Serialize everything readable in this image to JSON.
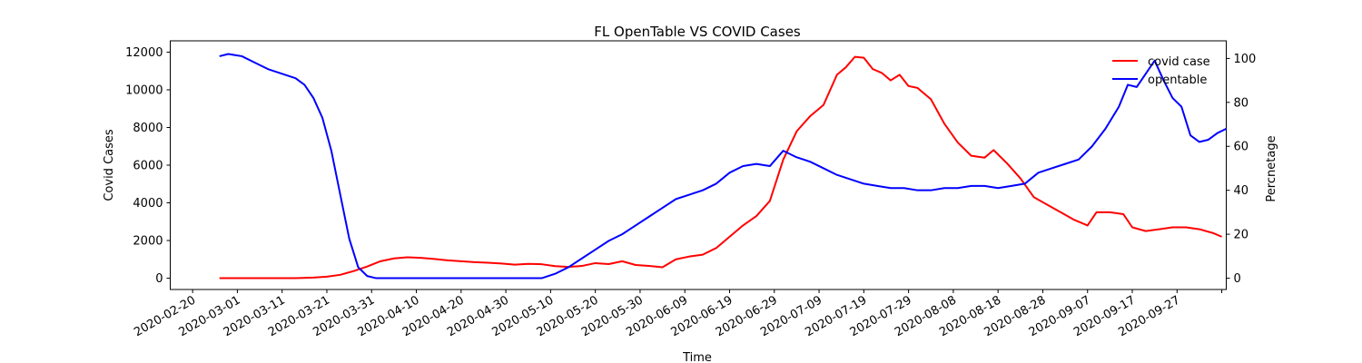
{
  "chart_data": {
    "type": "line",
    "title": "FL OpenTable VS COVID Cases",
    "xlabel": "Time",
    "ylabel_left": "Covid Cases",
    "ylabel_right": "Percnetage",
    "x_range": [
      "2020-02-15",
      "2020-10-08"
    ],
    "ylim_left": [
      -600,
      12600
    ],
    "ylim_right": [
      -5.14,
      108
    ],
    "x_ticks": [
      "2020-02-20",
      "2020-03-01",
      "2020-03-11",
      "2020-03-21",
      "2020-03-31",
      "2020-04-10",
      "2020-04-20",
      "2020-04-30",
      "2020-05-10",
      "2020-05-20",
      "2020-05-30",
      "2020-06-09",
      "2020-06-19",
      "2020-06-29",
      "2020-07-09",
      "2020-07-19",
      "2020-07-29",
      "2020-08-08",
      "2020-08-18",
      "2020-08-28",
      "2020-09-07",
      "2020-09-17",
      "2020-09-27",
      "2020-10-07"
    ],
    "x_tick_labels": [
      "2020-02-20",
      "2020-03-01",
      "2020-03-11",
      "2020-03-21",
      "2020-03-31",
      "2020-04-10",
      "2020-04-20",
      "2020-04-30",
      "2020-05-10",
      "2020-05-20",
      "2020-05-30",
      "2020-06-09",
      "2020-06-19",
      "2020-06-29",
      "2020-07-09",
      "2020-07-19",
      "2020-07-29",
      "2020-08-08",
      "2020-08-18",
      "2020-08-28",
      "2020-09-07",
      "2020-09-17",
      "2020-09-27",
      ""
    ],
    "y_ticks_left": [
      0,
      2000,
      4000,
      6000,
      8000,
      10000,
      12000
    ],
    "y_ticks_right": [
      0,
      20,
      40,
      60,
      80,
      100
    ],
    "legend_position": "top-right",
    "grid": false,
    "series": [
      {
        "name": "covid case",
        "color": "#ff0000",
        "axis": "left",
        "points": [
          [
            "2020-02-26",
            0
          ],
          [
            "2020-03-01",
            0
          ],
          [
            "2020-03-05",
            0
          ],
          [
            "2020-03-10",
            0
          ],
          [
            "2020-03-14",
            0
          ],
          [
            "2020-03-18",
            30
          ],
          [
            "2020-03-21",
            80
          ],
          [
            "2020-03-24",
            180
          ],
          [
            "2020-03-27",
            380
          ],
          [
            "2020-03-30",
            620
          ],
          [
            "2020-04-02",
            900
          ],
          [
            "2020-04-05",
            1050
          ],
          [
            "2020-04-08",
            1110
          ],
          [
            "2020-04-11",
            1080
          ],
          [
            "2020-04-14",
            1020
          ],
          [
            "2020-04-17",
            950
          ],
          [
            "2020-04-20",
            900
          ],
          [
            "2020-04-23",
            850
          ],
          [
            "2020-04-26",
            820
          ],
          [
            "2020-04-29",
            780
          ],
          [
            "2020-05-02",
            720
          ],
          [
            "2020-05-05",
            760
          ],
          [
            "2020-05-08",
            740
          ],
          [
            "2020-05-11",
            640
          ],
          [
            "2020-05-14",
            600
          ],
          [
            "2020-05-17",
            650
          ],
          [
            "2020-05-20",
            800
          ],
          [
            "2020-05-23",
            750
          ],
          [
            "2020-05-26",
            900
          ],
          [
            "2020-05-29",
            700
          ],
          [
            "2020-06-01",
            650
          ],
          [
            "2020-06-04",
            580
          ],
          [
            "2020-06-07",
            1000
          ],
          [
            "2020-06-10",
            1150
          ],
          [
            "2020-06-13",
            1250
          ],
          [
            "2020-06-16",
            1600
          ],
          [
            "2020-06-19",
            2200
          ],
          [
            "2020-06-22",
            2800
          ],
          [
            "2020-06-25",
            3300
          ],
          [
            "2020-06-28",
            4100
          ],
          [
            "2020-07-01",
            6300
          ],
          [
            "2020-07-04",
            7800
          ],
          [
            "2020-07-07",
            8600
          ],
          [
            "2020-07-10",
            9200
          ],
          [
            "2020-07-13",
            10800
          ],
          [
            "2020-07-15",
            11200
          ],
          [
            "2020-07-17",
            11750
          ],
          [
            "2020-07-19",
            11700
          ],
          [
            "2020-07-21",
            11100
          ],
          [
            "2020-07-23",
            10900
          ],
          [
            "2020-07-25",
            10500
          ],
          [
            "2020-07-27",
            10800
          ],
          [
            "2020-07-29",
            10200
          ],
          [
            "2020-07-31",
            10100
          ],
          [
            "2020-08-03",
            9500
          ],
          [
            "2020-08-06",
            8200
          ],
          [
            "2020-08-09",
            7200
          ],
          [
            "2020-08-12",
            6500
          ],
          [
            "2020-08-15",
            6400
          ],
          [
            "2020-08-17",
            6800
          ],
          [
            "2020-08-20",
            6100
          ],
          [
            "2020-08-23",
            5300
          ],
          [
            "2020-08-26",
            4300
          ],
          [
            "2020-08-29",
            3900
          ],
          [
            "2020-09-01",
            3500
          ],
          [
            "2020-09-04",
            3100
          ],
          [
            "2020-09-07",
            2800
          ],
          [
            "2020-09-09",
            3500
          ],
          [
            "2020-09-12",
            3500
          ],
          [
            "2020-09-15",
            3400
          ],
          [
            "2020-09-17",
            2700
          ],
          [
            "2020-09-20",
            2500
          ],
          [
            "2020-09-23",
            2600
          ],
          [
            "2020-09-26",
            2700
          ],
          [
            "2020-09-29",
            2700
          ],
          [
            "2020-10-02",
            2600
          ],
          [
            "2020-10-05",
            2400
          ],
          [
            "2020-10-07",
            2200
          ]
        ]
      },
      {
        "name": "opentable",
        "color": "#0000ff",
        "axis": "right",
        "points": [
          [
            "2020-02-26",
            101
          ],
          [
            "2020-02-28",
            102
          ],
          [
            "2020-03-02",
            101
          ],
          [
            "2020-03-05",
            98
          ],
          [
            "2020-03-08",
            95
          ],
          [
            "2020-03-11",
            93
          ],
          [
            "2020-03-14",
            91
          ],
          [
            "2020-03-16",
            88
          ],
          [
            "2020-03-18",
            82
          ],
          [
            "2020-03-20",
            73
          ],
          [
            "2020-03-22",
            58
          ],
          [
            "2020-03-24",
            38
          ],
          [
            "2020-03-26",
            18
          ],
          [
            "2020-03-28",
            5
          ],
          [
            "2020-03-30",
            1
          ],
          [
            "2020-04-01",
            0
          ],
          [
            "2020-04-10",
            0
          ],
          [
            "2020-04-20",
            0
          ],
          [
            "2020-04-30",
            0
          ],
          [
            "2020-05-08",
            0
          ],
          [
            "2020-05-11",
            2
          ],
          [
            "2020-05-14",
            5
          ],
          [
            "2020-05-17",
            9
          ],
          [
            "2020-05-20",
            13
          ],
          [
            "2020-05-23",
            17
          ],
          [
            "2020-05-26",
            20
          ],
          [
            "2020-05-29",
            24
          ],
          [
            "2020-06-01",
            28
          ],
          [
            "2020-06-04",
            32
          ],
          [
            "2020-06-07",
            36
          ],
          [
            "2020-06-10",
            38
          ],
          [
            "2020-06-13",
            40
          ],
          [
            "2020-06-16",
            43
          ],
          [
            "2020-06-19",
            48
          ],
          [
            "2020-06-22",
            51
          ],
          [
            "2020-06-25",
            52
          ],
          [
            "2020-06-28",
            51
          ],
          [
            "2020-07-01",
            58
          ],
          [
            "2020-07-04",
            55
          ],
          [
            "2020-07-07",
            53
          ],
          [
            "2020-07-10",
            50
          ],
          [
            "2020-07-13",
            47
          ],
          [
            "2020-07-16",
            45
          ],
          [
            "2020-07-19",
            43
          ],
          [
            "2020-07-22",
            42
          ],
          [
            "2020-07-25",
            41
          ],
          [
            "2020-07-28",
            41
          ],
          [
            "2020-07-31",
            40
          ],
          [
            "2020-08-03",
            40
          ],
          [
            "2020-08-06",
            41
          ],
          [
            "2020-08-09",
            41
          ],
          [
            "2020-08-12",
            42
          ],
          [
            "2020-08-15",
            42
          ],
          [
            "2020-08-18",
            41
          ],
          [
            "2020-08-21",
            42
          ],
          [
            "2020-08-24",
            43
          ],
          [
            "2020-08-27",
            48
          ],
          [
            "2020-08-30",
            50
          ],
          [
            "2020-09-02",
            52
          ],
          [
            "2020-09-05",
            54
          ],
          [
            "2020-09-08",
            60
          ],
          [
            "2020-09-11",
            68
          ],
          [
            "2020-09-14",
            78
          ],
          [
            "2020-09-16",
            88
          ],
          [
            "2020-09-18",
            87
          ],
          [
            "2020-09-20",
            93
          ],
          [
            "2020-09-22",
            99
          ],
          [
            "2020-09-24",
            90
          ],
          [
            "2020-09-26",
            82
          ],
          [
            "2020-09-28",
            78
          ],
          [
            "2020-09-30",
            65
          ],
          [
            "2020-10-02",
            62
          ],
          [
            "2020-10-04",
            63
          ],
          [
            "2020-10-06",
            66
          ],
          [
            "2020-10-08",
            68
          ]
        ]
      }
    ]
  }
}
